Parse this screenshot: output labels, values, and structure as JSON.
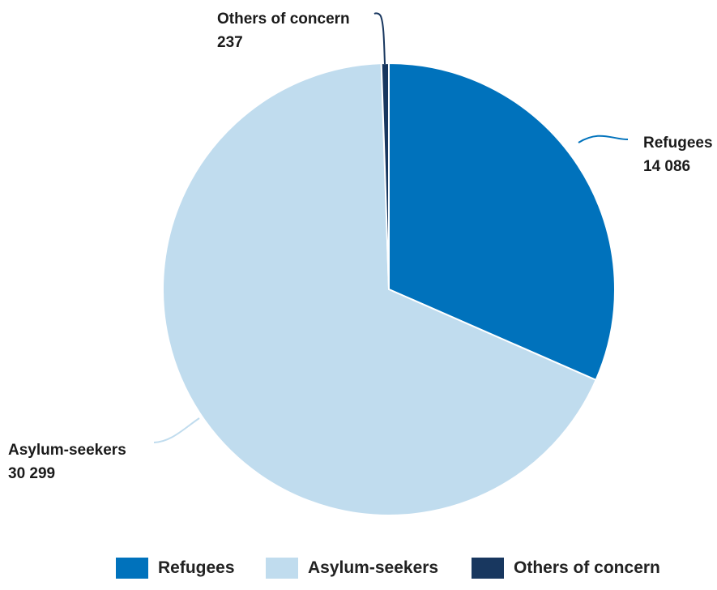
{
  "chart_data": {
    "type": "pie",
    "slices": [
      {
        "label": "Refugees",
        "value": 14086,
        "display": "14 086",
        "color": "#0072bc"
      },
      {
        "label": "Asylum-seekers",
        "value": 30299,
        "display": "30 299",
        "color": "#c0dcee"
      },
      {
        "label": "Others of concern",
        "value": 237,
        "display": "237",
        "color": "#18375f"
      }
    ],
    "legend": {
      "placement": "bottom",
      "items": [
        "Refugees",
        "Asylum-seekers",
        "Others of concern"
      ]
    }
  }
}
